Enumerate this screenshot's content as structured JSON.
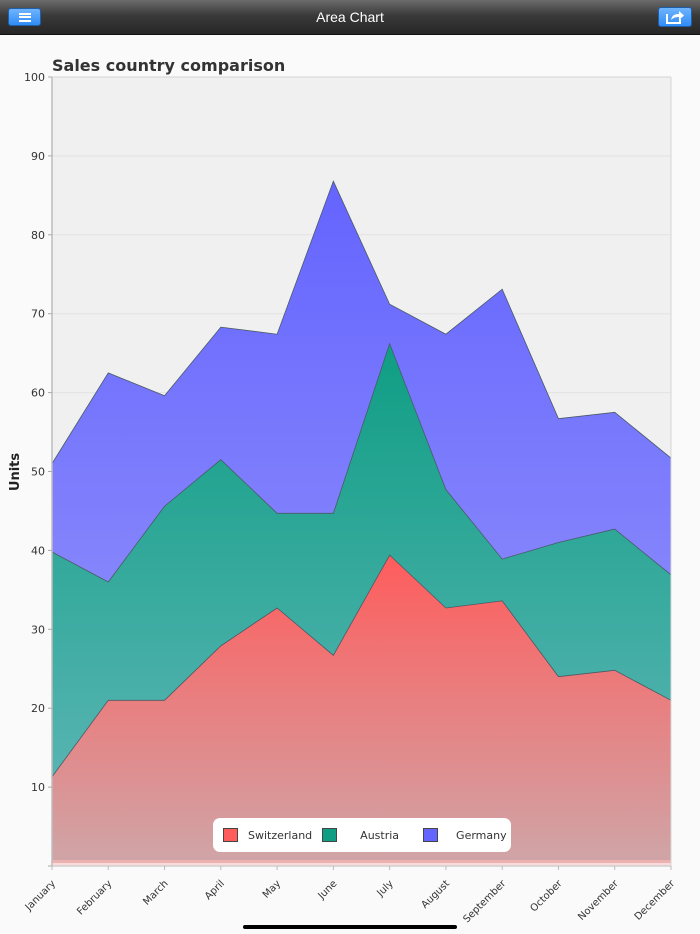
{
  "navbar": {
    "title": "Area Chart",
    "menu_icon": "hamburger-menu-icon",
    "share_icon": "share-export-icon",
    "accent": "#3a90f5"
  },
  "chart_data": {
    "type": "area",
    "stacked": true,
    "title": "Sales country comparison",
    "xlabel": "",
    "ylabel": "Units",
    "ylim": [
      0,
      100
    ],
    "yticks": [
      10,
      20,
      30,
      40,
      50,
      60,
      70,
      80,
      90,
      100
    ],
    "grid": true,
    "legend_position": "bottom-center-inside",
    "categories": [
      "January",
      "February",
      "March",
      "April",
      "May",
      "June",
      "July",
      "August",
      "September",
      "October",
      "November",
      "December"
    ],
    "series": [
      {
        "name": "Switzerland",
        "color": "#ff5c5c",
        "values": [
          11.3,
          21,
          21,
          27.9,
          32.7,
          26.7,
          39.4,
          32.7,
          33.6,
          24,
          24.8,
          21
        ]
      },
      {
        "name": "Austria",
        "color": "#0f9e84",
        "values": [
          28.5,
          15,
          24.6,
          23.6,
          12,
          18,
          26.8,
          15,
          5.3,
          17,
          17.9,
          15.9
        ]
      },
      {
        "name": "Germany",
        "color": "#6464ff",
        "values": [
          11.2,
          26.5,
          14,
          16.8,
          22.7,
          42.1,
          5,
          19.7,
          34.2,
          15.7,
          14.8,
          14.8
        ]
      }
    ]
  },
  "legend": {
    "items": [
      {
        "label": "Switzerland",
        "color": "#ff5c5c"
      },
      {
        "label": "Austria",
        "color": "#0f9e84"
      },
      {
        "label": "Germany",
        "color": "#6464ff"
      }
    ]
  }
}
